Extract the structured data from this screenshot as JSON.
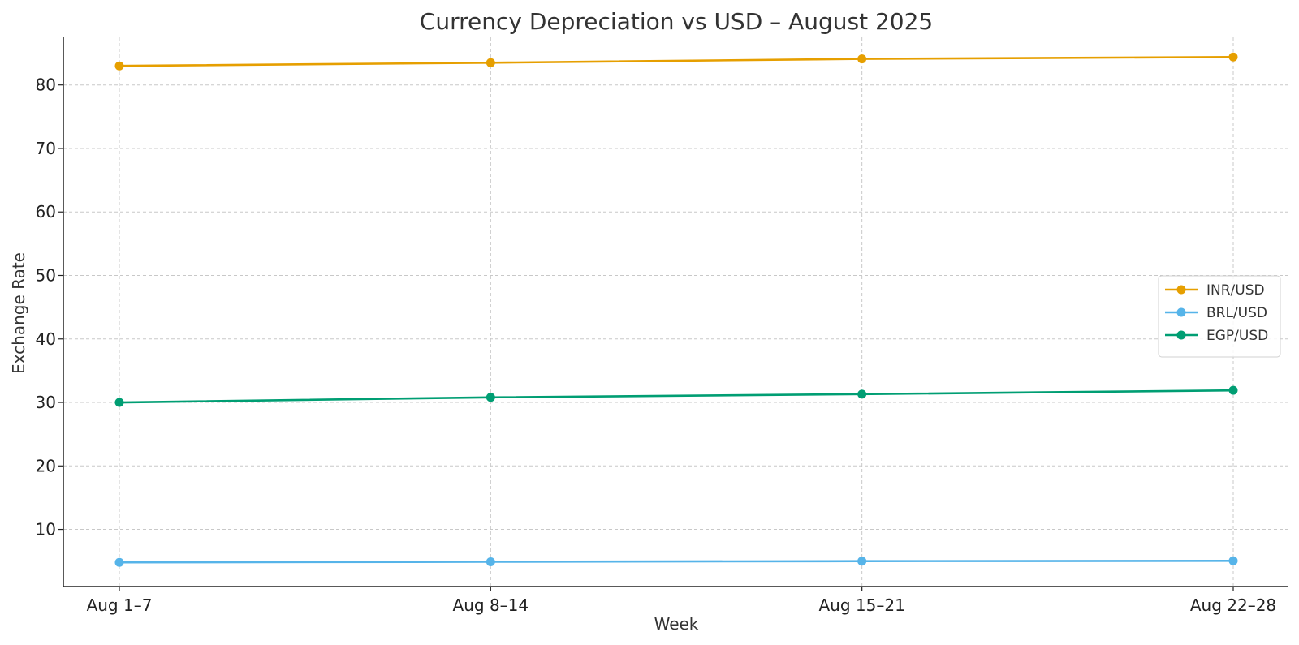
{
  "chart_data": {
    "type": "line",
    "title": "Currency Depreciation vs USD – August 2025",
    "xlabel": "Week",
    "ylabel": "Exchange Rate",
    "categories": [
      "Aug 1–7",
      "Aug 8–14",
      "Aug 15–21",
      "Aug 22–28"
    ],
    "ylim": [
      1,
      87.5
    ],
    "yticks": [
      10,
      20,
      30,
      40,
      50,
      60,
      70,
      80
    ],
    "grid": true,
    "legend_position": "center-right",
    "series": [
      {
        "name": "INR/USD",
        "color": "#E69F00",
        "values": [
          83.0,
          83.5,
          84.1,
          84.4
        ]
      },
      {
        "name": "BRL/USD",
        "color": "#56B4E9",
        "values": [
          4.8,
          4.9,
          5.0,
          5.05
        ]
      },
      {
        "name": "EGP/USD",
        "color": "#009E73",
        "values": [
          30.0,
          30.8,
          31.3,
          31.9
        ]
      }
    ]
  }
}
